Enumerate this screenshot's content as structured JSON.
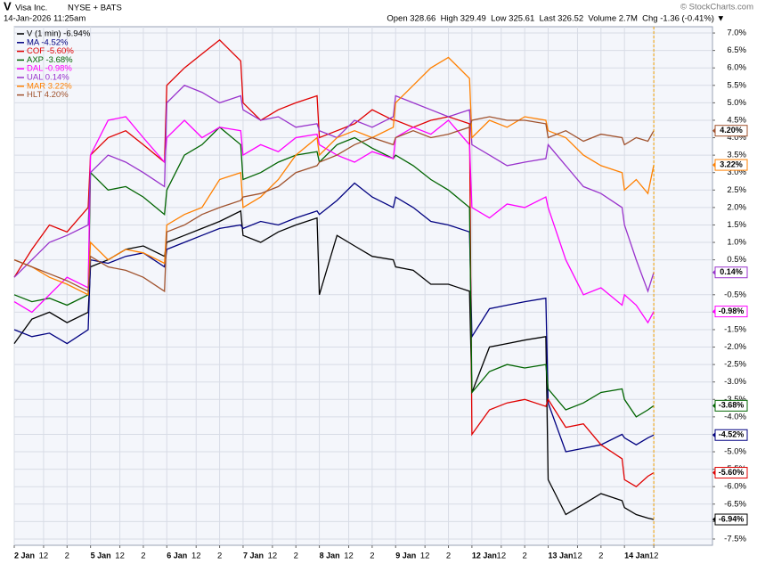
{
  "chart_data": {
    "type": "line",
    "header": {
      "symbol": "V",
      "name": "Visa Inc.",
      "exchange": "NYSE + BATS",
      "timestamp": "14-Jan-2026 11:25am",
      "quote": "Open 328.66  High 329.49  Low 325.61  Last 326.52  Volume 2.7M  Chg -1.36 (-0.41%) ▼",
      "credit": "© StockCharts.com"
    },
    "x": [
      0,
      1.5,
      3,
      4.5,
      6.3,
      6.5,
      8,
      9.5,
      11,
      12.8,
      13,
      14.5,
      16,
      17.5,
      19.3,
      19.5,
      21,
      22.5,
      24,
      25.8,
      26,
      27.5,
      29,
      30.5,
      32.3,
      32.5,
      34,
      35.5,
      37,
      38.8,
      39,
      40.5,
      42,
      43.5,
      45.3,
      45.5,
      47,
      48.5,
      50,
      51.8,
      52,
      53,
      54,
      54.5
    ],
    "xlim": [
      0,
      59.5
    ],
    "xticks": [
      {
        "value": 0,
        "label": "2 Jan"
      },
      {
        "value": 2.5,
        "label": "12"
      },
      {
        "value": 4.5,
        "label": "2"
      },
      {
        "value": 6.5,
        "label": "5 Jan"
      },
      {
        "value": 9,
        "label": "12"
      },
      {
        "value": 11,
        "label": "2"
      },
      {
        "value": 13,
        "label": "6 Jan"
      },
      {
        "value": 15.5,
        "label": "12"
      },
      {
        "value": 17.5,
        "label": "2"
      },
      {
        "value": 19.5,
        "label": "7 Jan"
      },
      {
        "value": 22,
        "label": "12"
      },
      {
        "value": 24,
        "label": "2"
      },
      {
        "value": 26,
        "label": "8 Jan"
      },
      {
        "value": 28.5,
        "label": "12"
      },
      {
        "value": 30.5,
        "label": "2"
      },
      {
        "value": 32.5,
        "label": "9 Jan"
      },
      {
        "value": 35,
        "label": "12"
      },
      {
        "value": 37,
        "label": "2"
      },
      {
        "value": 39,
        "label": "12 Jan"
      },
      {
        "value": 41.5,
        "label": "12"
      },
      {
        "value": 43.5,
        "label": "2"
      },
      {
        "value": 45.5,
        "label": "13 Jan"
      },
      {
        "value": 48,
        "label": "12"
      },
      {
        "value": 50,
        "label": "2"
      },
      {
        "value": 52,
        "label": "14 Jan"
      },
      {
        "value": 54.5,
        "label": "12"
      }
    ],
    "ylim": [
      -7.68,
      7.18
    ],
    "yticks": [
      {
        "value": 7.0,
        "label": "7.0%"
      },
      {
        "value": 6.5,
        "label": "6.5%"
      },
      {
        "value": 6.0,
        "label": "6.0%"
      },
      {
        "value": 5.5,
        "label": "5.5%"
      },
      {
        "value": 5.0,
        "label": "5.0%"
      },
      {
        "value": 4.5,
        "label": "4.5%"
      },
      {
        "value": 4.0,
        "label": "4.0%"
      },
      {
        "value": 3.5,
        "label": "3.5%"
      },
      {
        "value": 3.0,
        "label": "3.0%"
      },
      {
        "value": 2.5,
        "label": "2.5%"
      },
      {
        "value": 2.0,
        "label": "2.0%"
      },
      {
        "value": 1.5,
        "label": "1.5%"
      },
      {
        "value": 1.0,
        "label": "1.0%"
      },
      {
        "value": 0.5,
        "label": "0.5%"
      },
      {
        "value": -0.5,
        "label": "-0.5%"
      },
      {
        "value": -1.0,
        "label": "-1.0%"
      },
      {
        "value": -1.5,
        "label": "-1.5%"
      },
      {
        "value": -2.0,
        "label": "-2.0%"
      },
      {
        "value": -2.5,
        "label": "-2.5%"
      },
      {
        "value": -3.0,
        "label": "-3.0%"
      },
      {
        "value": -3.5,
        "label": "-3.5%"
      },
      {
        "value": -4.0,
        "label": "-4.0%"
      },
      {
        "value": -4.5,
        "label": "-4.5%"
      },
      {
        "value": -5.0,
        "label": "-5.0%"
      },
      {
        "value": -5.5,
        "label": "-5.5%"
      },
      {
        "value": -6.0,
        "label": "-6.0%"
      },
      {
        "value": -6.5,
        "label": "-6.5%"
      },
      {
        "value": -7.0,
        "label": "-7.0%"
      },
      {
        "value": -7.5,
        "label": "-7.5%"
      }
    ],
    "grid": true,
    "series": [
      {
        "name": "V (1 min) -6.94%",
        "color": "#000000",
        "end_label": "-6.94%",
        "values": [
          -1.9,
          -1.2,
          -1.0,
          -1.3,
          -1.0,
          0.3,
          0.5,
          0.8,
          0.9,
          0.6,
          1.0,
          1.2,
          1.4,
          1.6,
          1.9,
          1.2,
          1.0,
          1.3,
          1.5,
          1.7,
          -0.5,
          1.2,
          0.9,
          0.6,
          0.5,
          0.3,
          0.2,
          -0.2,
          -0.2,
          -0.4,
          -3.3,
          -2.0,
          -1.9,
          -1.8,
          -1.7,
          -5.8,
          -6.8,
          -6.5,
          -6.2,
          -6.4,
          -6.6,
          -6.8,
          -6.9,
          -6.94
        ]
      },
      {
        "name": "MA -4.52%",
        "color": "#000080",
        "end_label": "-4.52%",
        "values": [
          -1.5,
          -1.7,
          -1.6,
          -1.9,
          -1.5,
          0.5,
          0.4,
          0.6,
          0.7,
          0.3,
          0.8,
          1.0,
          1.2,
          1.4,
          1.5,
          1.4,
          1.6,
          1.5,
          1.7,
          1.9,
          1.8,
          2.2,
          2.7,
          2.3,
          2.0,
          2.3,
          2.0,
          1.6,
          1.5,
          1.3,
          -1.7,
          -0.9,
          -0.8,
          -0.7,
          -0.6,
          -3.6,
          -5.0,
          -4.9,
          -4.8,
          -4.5,
          -4.6,
          -4.8,
          -4.6,
          -4.52
        ]
      },
      {
        "name": "COF -5.60%",
        "color": "#e00000",
        "end_label": "-5.60%",
        "values": [
          0.0,
          0.8,
          1.5,
          1.3,
          2.0,
          3.5,
          4.0,
          4.2,
          3.8,
          3.3,
          5.5,
          6.0,
          6.4,
          6.8,
          6.2,
          5.0,
          4.5,
          4.8,
          5.0,
          5.2,
          4.0,
          4.2,
          4.4,
          4.8,
          4.5,
          4.5,
          4.3,
          4.5,
          4.6,
          4.4,
          -4.5,
          -3.8,
          -3.6,
          -3.5,
          -3.7,
          -3.5,
          -4.3,
          -4.2,
          -4.8,
          -5.2,
          -5.8,
          -6.0,
          -5.7,
          -5.6
        ]
      },
      {
        "name": "AXP -3.68%",
        "color": "#006400",
        "end_label": "-3.68%",
        "values": [
          -0.5,
          -0.7,
          -0.6,
          -0.8,
          -0.5,
          3.0,
          2.5,
          2.6,
          2.3,
          1.8,
          2.5,
          3.5,
          3.8,
          4.3,
          3.8,
          2.8,
          3.0,
          3.3,
          3.5,
          3.6,
          3.3,
          3.8,
          4.0,
          3.7,
          3.4,
          3.5,
          3.2,
          2.8,
          2.5,
          2.0,
          -3.3,
          -2.7,
          -2.5,
          -2.6,
          -2.5,
          -3.2,
          -3.8,
          -3.6,
          -3.3,
          -3.2,
          -3.5,
          -4.0,
          -3.8,
          -3.68
        ]
      },
      {
        "name": "DAL -0.98%",
        "color": "#ff00ff",
        "end_label": "-0.98%",
        "values": [
          -0.7,
          -1.0,
          -0.5,
          0.0,
          -0.3,
          3.5,
          4.5,
          4.6,
          4.0,
          3.3,
          4.0,
          4.5,
          4.0,
          4.3,
          4.2,
          3.5,
          3.8,
          3.6,
          4.0,
          4.1,
          3.8,
          3.5,
          3.3,
          3.6,
          3.4,
          4.0,
          4.3,
          4.1,
          4.5,
          3.8,
          2.0,
          1.7,
          2.1,
          2.0,
          2.3,
          2.0,
          0.5,
          -0.5,
          -0.3,
          -0.8,
          -0.5,
          -0.8,
          -1.3,
          -0.98
        ]
      },
      {
        "name": "UAL 0.14%",
        "color": "#9933cc",
        "end_label": "0.14%",
        "values": [
          0.0,
          0.5,
          1.0,
          1.2,
          1.5,
          3.0,
          3.5,
          3.3,
          3.0,
          2.6,
          5.0,
          5.5,
          5.3,
          5.0,
          5.2,
          4.8,
          4.5,
          4.6,
          4.3,
          4.4,
          4.2,
          4.0,
          4.5,
          4.3,
          4.6,
          5.2,
          5.0,
          4.8,
          4.6,
          4.8,
          3.8,
          3.5,
          3.2,
          3.3,
          3.4,
          3.8,
          3.2,
          2.6,
          2.4,
          2.0,
          1.5,
          0.5,
          -0.4,
          0.14
        ]
      },
      {
        "name": "MAR 3.22%",
        "color": "#ff8000",
        "end_label": "3.22%",
        "values": [
          0.5,
          0.3,
          0.0,
          -0.2,
          -0.5,
          1.0,
          0.5,
          0.8,
          0.7,
          0.4,
          1.5,
          1.8,
          2.0,
          2.8,
          3.0,
          2.0,
          2.3,
          2.8,
          3.5,
          4.0,
          3.5,
          4.0,
          4.2,
          4.0,
          4.3,
          5.0,
          5.5,
          6.0,
          6.3,
          5.7,
          4.0,
          4.5,
          4.3,
          4.6,
          4.5,
          4.2,
          4.0,
          3.5,
          3.2,
          3.0,
          2.5,
          2.8,
          2.4,
          3.22
        ]
      },
      {
        "name": "HLT 4.20%",
        "color": "#a0522d",
        "end_label": "4.20%",
        "values": [
          0.5,
          0.3,
          0.1,
          -0.1,
          -0.4,
          0.6,
          0.3,
          0.2,
          0.0,
          -0.4,
          1.3,
          1.5,
          1.8,
          2.0,
          2.2,
          2.3,
          2.4,
          2.6,
          3.0,
          3.2,
          3.3,
          3.5,
          3.8,
          4.0,
          3.8,
          4.0,
          4.2,
          4.0,
          4.1,
          4.3,
          4.5,
          4.6,
          4.5,
          4.5,
          4.4,
          4.0,
          4.2,
          3.9,
          4.1,
          4.0,
          3.8,
          4.0,
          3.9,
          4.2
        ]
      }
    ]
  }
}
